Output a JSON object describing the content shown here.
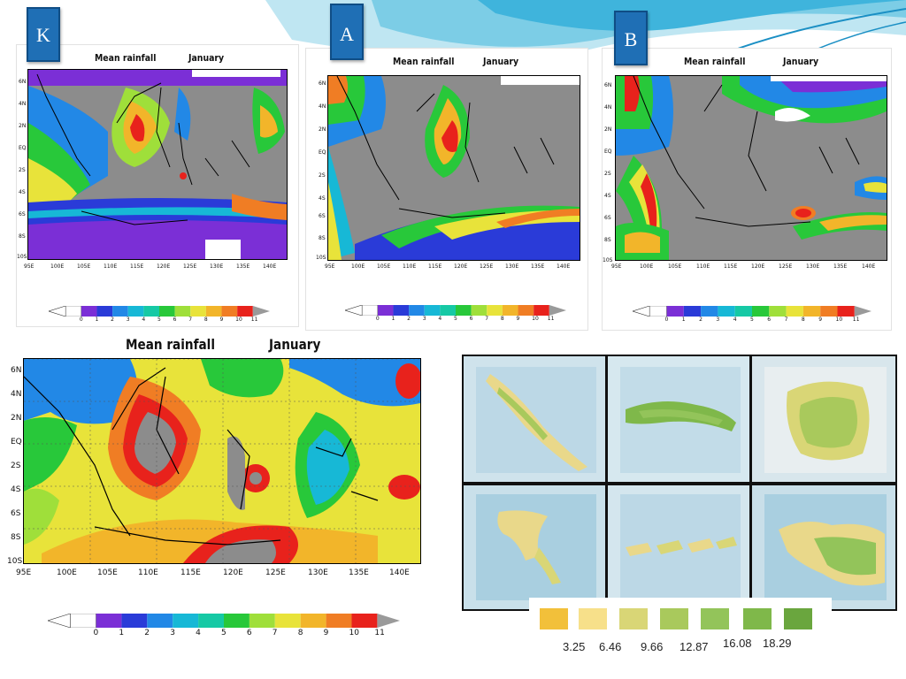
{
  "colors": {
    "tag_bg": "#1f6fb5",
    "land": "#8c8c8c",
    "rain_scale": [
      "#7b2fd6",
      "#2a3bd8",
      "#2288e6",
      "#17b8d6",
      "#16c9a5",
      "#28c83a",
      "#9fdf3a",
      "#e8e33a",
      "#f2b52a",
      "#f07d24",
      "#e8221c"
    ]
  },
  "tags": {
    "k": "K",
    "a": "A",
    "b": "B"
  },
  "panels": {
    "k": {
      "title": "Mean rainfall",
      "month": "January"
    },
    "a": {
      "title": "Mean rainfall",
      "month": "January"
    },
    "b": {
      "title": "Mean rainfall",
      "month": "January"
    },
    "main": {
      "title": "Mean rainfall",
      "month": "January"
    }
  },
  "lat_labels": [
    "6N",
    "4N",
    "2N",
    "EQ",
    "2S",
    "4S",
    "6S",
    "8S",
    "10S"
  ],
  "lon_labels": [
    "95E",
    "100E",
    "105E",
    "110E",
    "115E",
    "120E",
    "125E",
    "130E",
    "135E",
    "140E"
  ],
  "colorbar_labels": [
    "0",
    "1",
    "2",
    "3",
    "4",
    "5",
    "6",
    "7",
    "8",
    "9",
    "10",
    "11"
  ],
  "photo_maps": [
    {
      "icon": "sumatra-map-icon"
    },
    {
      "icon": "java-map-icon"
    },
    {
      "icon": "kalimantan-map-icon"
    },
    {
      "icon": "sulawesi-map-icon"
    },
    {
      "icon": "nusa-tenggara-map-icon"
    },
    {
      "icon": "papua-map-icon"
    }
  ],
  "vegetation_legend": [
    {
      "color": "#f2c03a",
      "label": "3.25"
    },
    {
      "color": "#f7e08a",
      "label": "6.46"
    },
    {
      "color": "#d9d676",
      "label": "9.66"
    },
    {
      "color": "#a9c95c",
      "label": "12.87"
    },
    {
      "color": "#93c45a",
      "label": "16.08"
    },
    {
      "color": "#7fb84a",
      "label": "18.29"
    },
    {
      "color": "#6aa63e"
    }
  ]
}
